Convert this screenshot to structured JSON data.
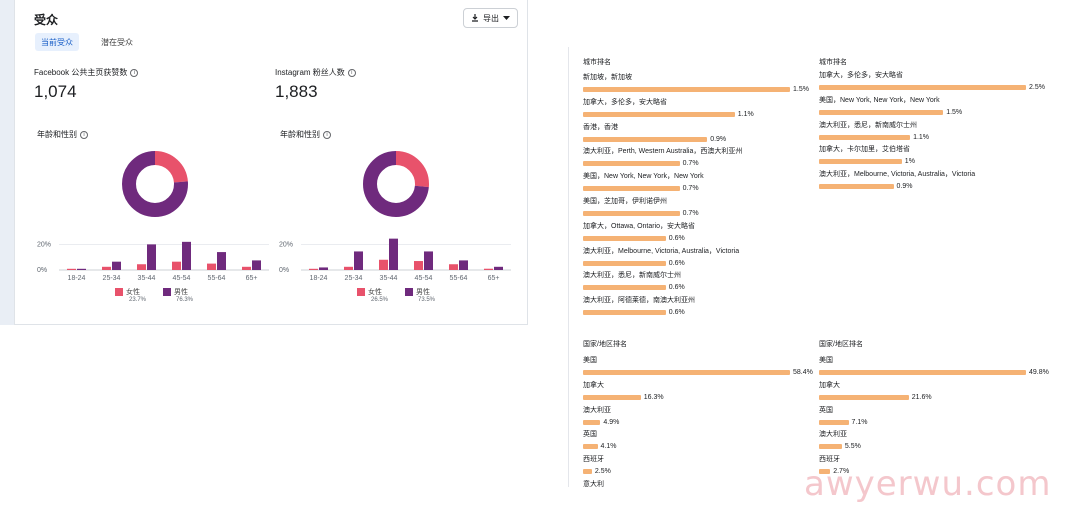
{
  "audience": {
    "title": "受众",
    "export_label": "导出",
    "tabs": [
      {
        "label": "当前受众",
        "active": true
      },
      {
        "label": "潜在受众",
        "active": false
      }
    ],
    "facebook": {
      "metric_label": "Facebook 公共主页获赞数",
      "metric_value": "1,074",
      "section_label": "年龄和性别",
      "donut": {
        "female": 23.7,
        "male": 76.3
      },
      "legend": {
        "female_label": "女性",
        "female_pct": "23.7%",
        "male_label": "男性",
        "male_pct": "76.3%"
      }
    },
    "instagram": {
      "metric_label": "Instagram 粉丝人数",
      "metric_value": "1,883",
      "section_label": "年龄和性别",
      "donut": {
        "female": 26.5,
        "male": 73.5
      },
      "legend": {
        "female_label": "女性",
        "female_pct": "26.5%",
        "male_label": "男性",
        "male_pct": "73.5%"
      }
    },
    "colors": {
      "female": "#e8526b",
      "male": "#6f2a7d",
      "bar": "#f5b274"
    }
  },
  "chart_data": [
    {
      "type": "bar",
      "categories": [
        "18-24",
        "25-34",
        "35-44",
        "45-54",
        "55-64",
        "65+"
      ],
      "series": [
        {
          "name": "女性",
          "values": [
            0.5,
            2.5,
            4.5,
            6.5,
            5,
            2.5
          ]
        },
        {
          "name": "男性",
          "values": [
            0.5,
            6.5,
            20,
            22,
            14,
            7.5
          ]
        }
      ],
      "yticks": [
        "0%",
        "20%"
      ],
      "ylim": [
        0,
        25
      ]
    },
    {
      "type": "bar",
      "categories": [
        "18-24",
        "25-34",
        "35-44",
        "45-54",
        "55-64",
        "65+"
      ],
      "series": [
        {
          "name": "女性",
          "values": [
            0.5,
            2.5,
            8,
            7,
            4.5,
            1
          ]
        },
        {
          "name": "男性",
          "values": [
            2,
            14.5,
            24.5,
            14.5,
            7.5,
            2.5
          ]
        }
      ],
      "yticks": [
        "0%",
        "20%"
      ],
      "ylim": [
        0,
        25
      ]
    }
  ],
  "rankings": {
    "city_left": {
      "title": "城市排名",
      "max": 1.5,
      "items": [
        {
          "label": "新加坡，新加坡",
          "value": 1.5,
          "display": "1.5%"
        },
        {
          "label": "加拿大，多伦多，安大略省",
          "value": 1.1,
          "display": "1.1%"
        },
        {
          "label": "香港，香港",
          "value": 0.9,
          "display": "0.9%"
        },
        {
          "label": "澳大利亚，Perth, Western Australia，西澳大利亚州",
          "value": 0.7,
          "display": "0.7%"
        },
        {
          "label": "美国，New York, New York，New York",
          "value": 0.7,
          "display": "0.7%"
        },
        {
          "label": "美国，芝加哥，伊利诺伊州",
          "value": 0.7,
          "display": "0.7%"
        },
        {
          "label": "加拿大，Ottawa, Ontario，安大略省",
          "value": 0.6,
          "display": "0.6%"
        },
        {
          "label": "澳大利亚，Melbourne, Victoria, Australia，Victoria",
          "value": 0.6,
          "display": "0.6%"
        },
        {
          "label": "澳大利亚，悉尼，新南威尔士州",
          "value": 0.6,
          "display": "0.6%"
        },
        {
          "label": "澳大利亚，阿德莱德，南澳大利亚州",
          "value": 0.6,
          "display": "0.6%"
        }
      ]
    },
    "city_right": {
      "title": "城市排名",
      "max": 2.5,
      "items": [
        {
          "label": "加拿大，多伦多，安大略省",
          "value": 2.5,
          "display": "2.5%"
        },
        {
          "label": "美国，New York, New York，New York",
          "value": 1.5,
          "display": "1.5%"
        },
        {
          "label": "澳大利亚，悉尼，新南威尔士州",
          "value": 1.1,
          "display": "1.1%"
        },
        {
          "label": "加拿大，卡尔加里，艾伯塔省",
          "value": 1.0,
          "display": "1%"
        },
        {
          "label": "澳大利亚，Melbourne, Victoria, Australia，Victoria",
          "value": 0.9,
          "display": "0.9%"
        }
      ]
    },
    "country_left": {
      "title": "国家/地区排名",
      "max": 58.4,
      "items": [
        {
          "label": "美国",
          "value": 58.4,
          "display": "58.4%"
        },
        {
          "label": "加拿大",
          "value": 16.3,
          "display": "16.3%"
        },
        {
          "label": "澳大利亚",
          "value": 4.9,
          "display": "4.9%"
        },
        {
          "label": "英国",
          "value": 4.1,
          "display": "4.1%"
        },
        {
          "label": "西班牙",
          "value": 2.5,
          "display": "2.5%"
        },
        {
          "label": "意大利",
          "value": 0,
          "display": ""
        }
      ]
    },
    "country_right": {
      "title": "国家/地区排名",
      "max": 49.8,
      "items": [
        {
          "label": "美国",
          "value": 49.8,
          "display": "49.8%"
        },
        {
          "label": "加拿大",
          "value": 21.6,
          "display": "21.6%"
        },
        {
          "label": "英国",
          "value": 7.1,
          "display": "7.1%"
        },
        {
          "label": "澳大利亚",
          "value": 5.5,
          "display": "5.5%"
        },
        {
          "label": "西班牙",
          "value": 2.7,
          "display": "2.7%"
        }
      ]
    }
  },
  "watermark": "awyerwu.com"
}
